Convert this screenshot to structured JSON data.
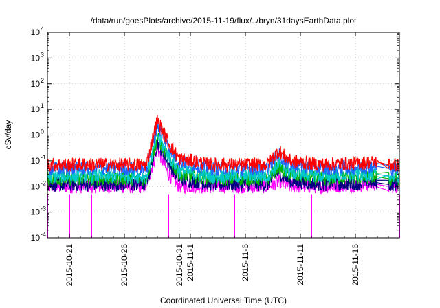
{
  "chart_data": {
    "type": "line",
    "title": "/data/run/goesPlots/archive/2015-11-19/flux/../bryn/31daysEarthData.plot",
    "xlabel": "Coordinated Universal Time (UTC)",
    "ylabel": "cSv/day",
    "yscale": "log",
    "ylim": [
      0.0001,
      10000
    ],
    "y_ticks": [
      {
        "value": 0.0001,
        "base": "10",
        "exp": "-4"
      },
      {
        "value": 0.001,
        "base": "10",
        "exp": "-3"
      },
      {
        "value": 0.01,
        "base": "10",
        "exp": "-2"
      },
      {
        "value": 0.1,
        "base": "10",
        "exp": "-1"
      },
      {
        "value": 1,
        "base": "10",
        "exp": "0"
      },
      {
        "value": 10,
        "base": "10",
        "exp": "1"
      },
      {
        "value": 100,
        "base": "10",
        "exp": "2"
      },
      {
        "value": 1000,
        "base": "10",
        "exp": "3"
      },
      {
        "value": 10000,
        "base": "10",
        "exp": "4"
      }
    ],
    "xlim": [
      "2015-10-19",
      "2015-11-20"
    ],
    "x_ticks": [
      {
        "date": "2015-10-21",
        "label": "2015-10-21"
      },
      {
        "date": "2015-10-26",
        "label": "2015-10-26"
      },
      {
        "date": "2015-10-31",
        "label": "2015-10-31"
      },
      {
        "date": "2015-11-01",
        "label": "2015-11-1"
      },
      {
        "date": "2015-11-06",
        "label": "2015-11-6"
      },
      {
        "date": "2015-11-11",
        "label": "2015-11-11"
      },
      {
        "date": "2015-11-16",
        "label": "2015-11-16"
      }
    ],
    "grid": true,
    "data_gaps": [
      [
        "2015-11-18",
        "2015-11-19"
      ]
    ],
    "series": [
      {
        "color": "#ff0000",
        "x": [
          "2015-10-19",
          "2015-10-25",
          "2015-10-28",
          "2015-10-29",
          "2015-10-30",
          "2015-10-31",
          "2015-11-03",
          "2015-11-08",
          "2015-11-09",
          "2015-11-10",
          "2015-11-13",
          "2015-11-18",
          "2015-11-19",
          "2015-11-20"
        ],
        "y": [
          0.07,
          0.07,
          0.07,
          4.0,
          0.5,
          0.12,
          0.07,
          0.07,
          0.25,
          0.1,
          0.07,
          0.09,
          0.07,
          0.07
        ]
      },
      {
        "color": "#1e64ff",
        "x": [
          "2015-10-19",
          "2015-10-25",
          "2015-10-28",
          "2015-10-29",
          "2015-10-30",
          "2015-10-31",
          "2015-11-03",
          "2015-11-08",
          "2015-11-09",
          "2015-11-10",
          "2015-11-13",
          "2015-11-18",
          "2015-11-19",
          "2015-11-20"
        ],
        "y": [
          0.05,
          0.05,
          0.05,
          2.5,
          0.35,
          0.09,
          0.05,
          0.05,
          0.18,
          0.07,
          0.05,
          0.06,
          0.05,
          0.05
        ]
      },
      {
        "color": "#00c8c8",
        "x": [
          "2015-10-19",
          "2015-10-25",
          "2015-10-28",
          "2015-10-29",
          "2015-10-30",
          "2015-10-31",
          "2015-11-03",
          "2015-11-08",
          "2015-11-09",
          "2015-11-10",
          "2015-11-13",
          "2015-11-18",
          "2015-11-19",
          "2015-11-20"
        ],
        "y": [
          0.025,
          0.025,
          0.025,
          1.0,
          0.15,
          0.04,
          0.025,
          0.025,
          0.08,
          0.035,
          0.025,
          0.03,
          0.025,
          0.025
        ]
      },
      {
        "color": "#00b400",
        "x": [
          "2015-10-19",
          "2015-10-25",
          "2015-10-28",
          "2015-10-29",
          "2015-10-30",
          "2015-10-31",
          "2015-11-03",
          "2015-11-08",
          "2015-11-09",
          "2015-11-10",
          "2015-11-13",
          "2015-11-18",
          "2015-11-19",
          "2015-11-20"
        ],
        "y": [
          0.02,
          0.02,
          0.02,
          0.8,
          0.12,
          0.03,
          0.02,
          0.02,
          0.06,
          0.028,
          0.02,
          0.024,
          0.02,
          0.02
        ]
      },
      {
        "color": "#000080",
        "x": [
          "2015-10-19",
          "2015-10-25",
          "2015-10-28",
          "2015-10-29",
          "2015-10-30",
          "2015-10-31",
          "2015-11-03",
          "2015-11-08",
          "2015-11-09",
          "2015-11-10",
          "2015-11-13",
          "2015-11-18",
          "2015-11-19",
          "2015-11-20"
        ],
        "y": [
          0.012,
          0.012,
          0.012,
          0.5,
          0.08,
          0.02,
          0.012,
          0.012,
          0.035,
          0.016,
          0.012,
          0.014,
          0.012,
          0.012
        ]
      },
      {
        "color": "#ff00ff",
        "x": [
          "2015-10-19",
          "2015-10-25",
          "2015-10-28",
          "2015-10-29",
          "2015-10-30",
          "2015-10-31",
          "2015-11-03",
          "2015-11-08",
          "2015-11-09",
          "2015-11-10",
          "2015-11-13",
          "2015-11-18",
          "2015-11-19",
          "2015-11-20"
        ],
        "y": [
          0.01,
          0.01,
          0.01,
          0.3,
          0.03,
          0.01,
          0.01,
          0.01,
          0.015,
          0.01,
          0.01,
          0.012,
          0.01,
          0.01
        ]
      }
    ],
    "drops": [
      {
        "color": "#ff00ff",
        "x": "2015-10-19",
        "y": 0.0001
      },
      {
        "color": "#ff00ff",
        "x": "2015-10-21",
        "y": 0.0001
      },
      {
        "color": "#ff00ff",
        "x": "2015-10-23",
        "y": 0.0001
      },
      {
        "color": "#ff00ff",
        "x": "2015-10-30",
        "y": 0.0001
      },
      {
        "color": "#ff00ff",
        "x": "2015-11-05",
        "y": 0.0001
      },
      {
        "color": "#ff00ff",
        "x": "2015-11-12",
        "y": 0.0001
      },
      {
        "color": "#ff00ff",
        "x": "2015-11-20",
        "y": 0.0001
      }
    ]
  }
}
